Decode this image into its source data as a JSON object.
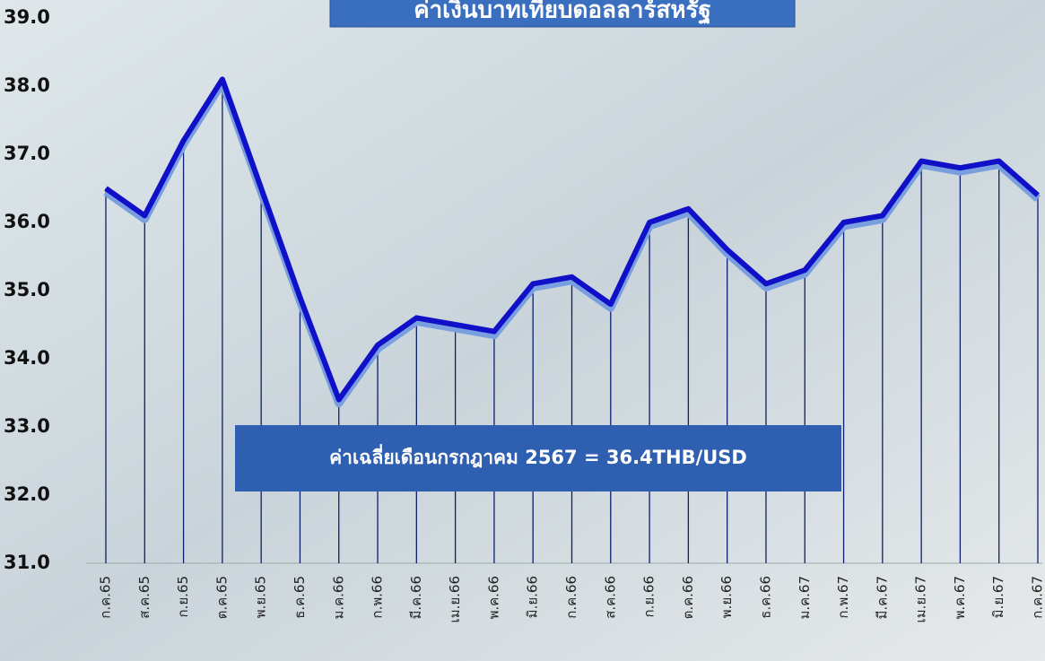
{
  "chart_data": {
    "type": "line",
    "title": "ค่าเงินบาทเทียบดอลลาร์สหรัฐ",
    "annotation": "ค่าเฉลี่ยเดือนกรกฎาคม 2567 = 36.4THB/USD",
    "categories": [
      "ก.ค.65",
      "ส.ค.65",
      "ก.ย.65",
      "ต.ค.65",
      "พ.ย.65",
      "ธ.ค.65",
      "ม.ค.66",
      "ก.พ.66",
      "มี.ค.66",
      "เม.ย.66",
      "พ.ค.66",
      "มิ.ย.66",
      "ก.ค.66",
      "ส.ค.66",
      "ก.ย.66",
      "ต.ค.66",
      "พ.ย.66",
      "ธ.ค.66",
      "ม.ค.67",
      "ก.พ.67",
      "มี.ค.67",
      "เม.ย.67",
      "พ.ค.67",
      "มิ.ย.67",
      "ก.ค.67"
    ],
    "series": [
      {
        "name": "THB/USD",
        "color": "#1010c8",
        "values": [
          36.5,
          36.1,
          37.2,
          38.1,
          36.5,
          34.9,
          33.4,
          34.2,
          34.6,
          34.5,
          34.4,
          35.1,
          35.2,
          34.8,
          36.0,
          36.2,
          35.6,
          35.1,
          35.3,
          36.0,
          36.1,
          36.9,
          36.8,
          36.9,
          36.4
        ]
      }
    ],
    "ylim": [
      31,
      39
    ],
    "yticks": [
      {
        "value": 31,
        "label": "31.0"
      },
      {
        "value": 32,
        "label": "32.0"
      },
      {
        "value": 33,
        "label": "33.0"
      },
      {
        "value": 34,
        "label": "34.0"
      },
      {
        "value": 35,
        "label": "35.0"
      },
      {
        "value": 36,
        "label": "36.0"
      },
      {
        "value": 37,
        "label": "37.0"
      },
      {
        "value": 38,
        "label": "38.0"
      },
      {
        "value": 39,
        "label": "39.0"
      }
    ],
    "drop_line_color": "#0c1f6e"
  }
}
